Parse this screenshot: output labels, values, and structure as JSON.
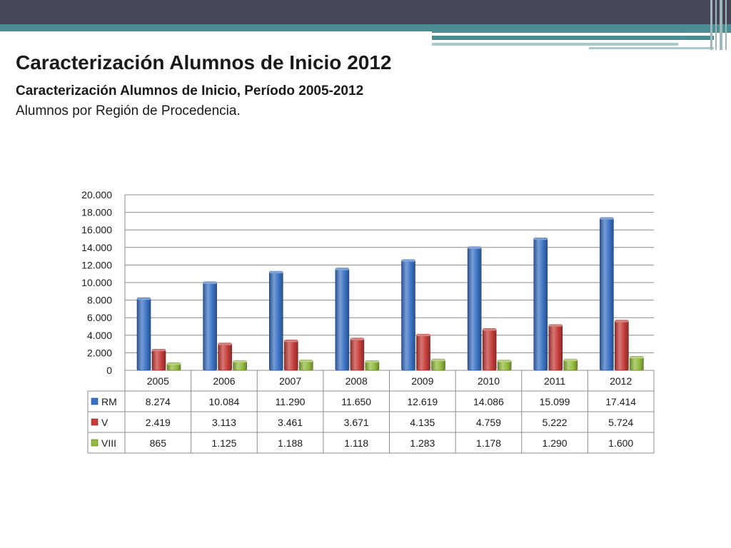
{
  "slide": {
    "title": "Caracterización Alumnos de Inicio 2012",
    "subtitle": "Caracterización Alumnos de Inicio, Período 2005-2012",
    "caption": "Alumnos por Región de Procedencia."
  },
  "chart_data": {
    "type": "bar",
    "categories": [
      "2005",
      "2006",
      "2007",
      "2008",
      "2009",
      "2010",
      "2011",
      "2012"
    ],
    "series": [
      {
        "name": "RM",
        "color": "#3b73c4",
        "values": [
          8274,
          10084,
          11290,
          11650,
          12619,
          14086,
          15099,
          17414
        ],
        "labels": [
          "8.274",
          "10.084",
          "11.290",
          "11.650",
          "12.619",
          "14.086",
          "15.099",
          "17.414"
        ]
      },
      {
        "name": "V",
        "color": "#c53d3a",
        "values": [
          2419,
          3113,
          3461,
          3671,
          4135,
          4759,
          5222,
          5724
        ],
        "labels": [
          "2.419",
          "3.113",
          "3.461",
          "3.671",
          "4.135",
          "4.759",
          "5.222",
          "5.724"
        ]
      },
      {
        "name": "VIII",
        "color": "#93bb3f",
        "values": [
          865,
          1125,
          1188,
          1118,
          1283,
          1178,
          1290,
          1600
        ],
        "labels": [
          "865",
          "1.125",
          "1.188",
          "1.118",
          "1.283",
          "1.178",
          "1.290",
          "1.600"
        ]
      }
    ],
    "ylim": [
      0,
      20000
    ],
    "yticks": [
      0,
      2000,
      4000,
      6000,
      8000,
      10000,
      12000,
      14000,
      16000,
      18000,
      20000
    ],
    "ytick_labels": [
      "0",
      "2.000",
      "4.000",
      "6.000",
      "8.000",
      "10.000",
      "12.000",
      "14.000",
      "16.000",
      "18.000",
      "20.000"
    ],
    "grid": true,
    "legend": "data-table"
  }
}
